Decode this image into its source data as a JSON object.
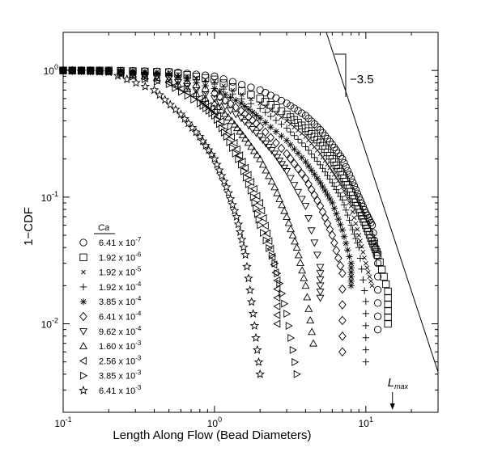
{
  "chart_data": {
    "type": "scatter",
    "xlabel": "Length Along Flow (Bead Diameters)",
    "ylabel": "1−CDF",
    "xscale": "log",
    "yscale": "log",
    "xlim": [
      0.1,
      30
    ],
    "ylim": [
      0.002,
      2
    ],
    "grid": false,
    "xticks": [
      {
        "value": 0.1,
        "base": "10",
        "exp": "-1"
      },
      {
        "value": 1,
        "base": "10",
        "exp": "0"
      },
      {
        "value": 10,
        "base": "10",
        "exp": "1"
      }
    ],
    "yticks": [
      {
        "value": 1,
        "base": "10",
        "exp": "0"
      },
      {
        "value": 0.1,
        "base": "10",
        "exp": "-1"
      },
      {
        "value": 0.01,
        "base": "10",
        "exp": "-2"
      }
    ],
    "legend": {
      "title": "Ca",
      "position": "left-middle",
      "entries": [
        {
          "marker": "circle",
          "mant": "6.41 x 10",
          "exp": "-7"
        },
        {
          "marker": "square",
          "mant": "1.92 x 10",
          "exp": "-6"
        },
        {
          "marker": "x",
          "mant": "1.92 x 10",
          "exp": "-5"
        },
        {
          "marker": "plus",
          "mant": "1.92 x 10",
          "exp": "-4"
        },
        {
          "marker": "asterisk",
          "mant": "3.85 x 10",
          "exp": "-4"
        },
        {
          "marker": "diamond",
          "mant": "6.41 x 10",
          "exp": "-4"
        },
        {
          "marker": "triangle-down",
          "mant": "9.62 x 10",
          "exp": "-4"
        },
        {
          "marker": "triangle-up",
          "mant": "1.60 x 10",
          "exp": "-3"
        },
        {
          "marker": "triangle-left",
          "mant": "2.56 x 10",
          "exp": "-3"
        },
        {
          "marker": "triangle-right",
          "mant": "3.85 x 10",
          "exp": "-3"
        },
        {
          "marker": "star",
          "mant": "6.41 x 10",
          "exp": "-3"
        }
      ]
    },
    "series": [
      {
        "marker": "circle",
        "x": [
          0.1,
          0.2,
          0.5,
          1.0,
          2.0,
          3.0,
          4.0,
          5.0,
          6.0,
          7.0,
          8.0,
          9.0,
          10.0,
          11.0,
          12.0,
          12.0
        ],
        "y": [
          1.0,
          1.0,
          0.98,
          0.9,
          0.7,
          0.55,
          0.44,
          0.34,
          0.26,
          0.2,
          0.14,
          0.1,
          0.075,
          0.06,
          0.03,
          0.009
        ]
      },
      {
        "marker": "square",
        "x": [
          0.1,
          0.2,
          0.5,
          1.0,
          2.0,
          3.0,
          4.0,
          5.0,
          6.0,
          7.0,
          8.0,
          9.0,
          10.0,
          11.0,
          12.0,
          14.0,
          14.0
        ],
        "y": [
          1.0,
          1.0,
          0.97,
          0.85,
          0.6,
          0.45,
          0.35,
          0.27,
          0.2,
          0.15,
          0.11,
          0.08,
          0.06,
          0.045,
          0.035,
          0.018,
          0.01
        ]
      },
      {
        "marker": "x",
        "x": [
          0.1,
          0.2,
          0.5,
          1.0,
          2.0,
          3.0,
          4.0,
          5.0,
          6.0,
          7.0,
          8.0,
          9.0,
          10.0,
          11.0
        ],
        "y": [
          1.0,
          1.0,
          0.96,
          0.82,
          0.55,
          0.4,
          0.3,
          0.22,
          0.16,
          0.12,
          0.085,
          0.05,
          0.03,
          0.02
        ]
      },
      {
        "marker": "plus",
        "x": [
          0.1,
          0.2,
          0.5,
          1.0,
          2.0,
          3.0,
          4.0,
          5.0,
          6.0,
          7.0,
          8.0,
          9.0,
          10.0,
          10.0
        ],
        "y": [
          1.0,
          1.0,
          0.95,
          0.78,
          0.5,
          0.35,
          0.25,
          0.18,
          0.13,
          0.095,
          0.06,
          0.04,
          0.015,
          0.005
        ]
      },
      {
        "marker": "asterisk",
        "x": [
          0.1,
          0.2,
          0.5,
          1.0,
          1.5,
          2.0,
          3.0,
          4.0,
          5.0,
          6.0,
          7.0,
          8.0,
          8.0
        ],
        "y": [
          1.0,
          0.99,
          0.93,
          0.72,
          0.55,
          0.42,
          0.28,
          0.19,
          0.13,
          0.09,
          0.055,
          0.03,
          0.02
        ]
      },
      {
        "marker": "diamond",
        "x": [
          0.1,
          0.2,
          0.5,
          1.0,
          1.5,
          2.0,
          3.0,
          4.0,
          5.0,
          6.0,
          7.0,
          7.0
        ],
        "y": [
          1.0,
          0.99,
          0.9,
          0.66,
          0.48,
          0.36,
          0.22,
          0.14,
          0.085,
          0.05,
          0.025,
          0.006
        ]
      },
      {
        "marker": "triangle-down",
        "x": [
          0.1,
          0.2,
          0.5,
          1.0,
          1.5,
          2.0,
          2.5,
          3.0,
          4.0,
          5.0,
          5.0
        ],
        "y": [
          1.0,
          0.99,
          0.87,
          0.6,
          0.42,
          0.3,
          0.22,
          0.16,
          0.085,
          0.028,
          0.016
        ]
      },
      {
        "marker": "triangle-up",
        "x": [
          0.1,
          0.2,
          0.5,
          1.0,
          1.3,
          1.6,
          2.0,
          2.5,
          3.0,
          3.5,
          4.0,
          4.5
        ],
        "y": [
          1.0,
          0.98,
          0.85,
          0.55,
          0.4,
          0.29,
          0.2,
          0.12,
          0.07,
          0.04,
          0.02,
          0.007
        ]
      },
      {
        "marker": "triangle-left",
        "x": [
          0.1,
          0.2,
          0.5,
          0.8,
          1.0,
          1.3,
          1.6,
          2.0,
          2.3,
          2.6,
          2.6
        ],
        "y": [
          1.0,
          0.98,
          0.8,
          0.6,
          0.48,
          0.3,
          0.17,
          0.09,
          0.045,
          0.022,
          0.01
        ]
      },
      {
        "marker": "triangle-right",
        "x": [
          0.1,
          0.2,
          0.5,
          0.8,
          1.0,
          1.2,
          1.5,
          1.8,
          2.0,
          2.5,
          3.0,
          3.5
        ],
        "y": [
          1.0,
          0.98,
          0.78,
          0.55,
          0.44,
          0.3,
          0.18,
          0.1,
          0.06,
          0.03,
          0.012,
          0.004
        ]
      },
      {
        "marker": "star",
        "x": [
          0.1,
          0.2,
          0.4,
          0.6,
          0.8,
          1.0,
          1.2,
          1.4,
          1.6,
          1.8,
          2.0
        ],
        "y": [
          1.0,
          0.97,
          0.7,
          0.45,
          0.3,
          0.2,
          0.12,
          0.07,
          0.035,
          0.012,
          0.004
        ]
      }
    ],
    "annotations": {
      "slope_label": "−3.5",
      "lmax_base": "L",
      "lmax_sub": "max",
      "lmax_x": 15
    }
  }
}
